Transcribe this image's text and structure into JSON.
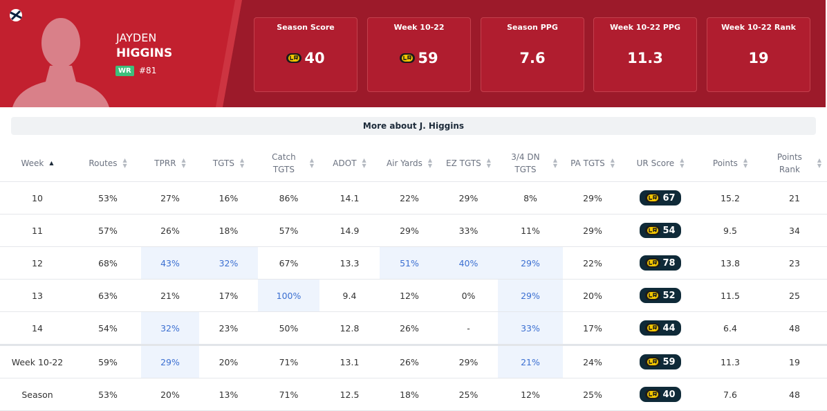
{
  "header": {
    "first_name": "JAYDEN",
    "last_name": "HIGGINS",
    "position": "WR",
    "number": "#81",
    "stats": [
      {
        "label": "Season Score",
        "value": "40",
        "badge": true
      },
      {
        "label": "Week 10-22",
        "value": "59",
        "badge": true
      },
      {
        "label": "Season PPG",
        "value": "7.6",
        "badge": false
      },
      {
        "label": "Week 10-22 PPG",
        "value": "11.3",
        "badge": false
      },
      {
        "label": "Week 10-22 Rank",
        "value": "19",
        "badge": false
      }
    ]
  },
  "more_button": "More about J. Higgins",
  "table": {
    "columns": [
      "Week",
      "Routes",
      "TPRR",
      "TGTS",
      "Catch TGTS",
      "ADOT",
      "Air Yards",
      "EZ TGTS",
      "3/4 DN TGTS",
      "PA TGTS",
      "UR Score",
      "Points",
      "Points Rank"
    ],
    "score_column": 10,
    "rows": [
      {
        "cells": [
          "10",
          "53%",
          "27%",
          "16%",
          "86%",
          "14.1",
          "22%",
          "29%",
          "8%",
          "29%",
          "67",
          "15.2",
          "21"
        ],
        "highlight": []
      },
      {
        "cells": [
          "11",
          "57%",
          "26%",
          "18%",
          "57%",
          "14.9",
          "29%",
          "33%",
          "11%",
          "29%",
          "54",
          "9.5",
          "34"
        ],
        "highlight": []
      },
      {
        "cells": [
          "12",
          "68%",
          "43%",
          "32%",
          "67%",
          "13.3",
          "51%",
          "40%",
          "29%",
          "22%",
          "78",
          "13.8",
          "23"
        ],
        "highlight": [
          2,
          3,
          6,
          7,
          8
        ]
      },
      {
        "cells": [
          "13",
          "63%",
          "21%",
          "17%",
          "100%",
          "9.4",
          "12%",
          "0%",
          "29%",
          "20%",
          "52",
          "11.5",
          "25"
        ],
        "highlight": [
          4,
          8
        ]
      },
      {
        "cells": [
          "14",
          "54%",
          "32%",
          "23%",
          "50%",
          "12.8",
          "26%",
          "-",
          "33%",
          "17%",
          "44",
          "6.4",
          "48"
        ],
        "highlight": [
          2,
          8
        ]
      }
    ],
    "summary_rows": [
      {
        "cells": [
          "Week 10-22",
          "59%",
          "29%",
          "20%",
          "71%",
          "13.1",
          "26%",
          "29%",
          "21%",
          "24%",
          "59",
          "11.3",
          "19"
        ],
        "highlight": [
          2,
          8
        ]
      },
      {
        "cells": [
          "Season",
          "53%",
          "20%",
          "13%",
          "71%",
          "12.5",
          "18%",
          "25%",
          "12%",
          "25%",
          "40",
          "7.6",
          "48"
        ],
        "highlight": []
      }
    ]
  }
}
